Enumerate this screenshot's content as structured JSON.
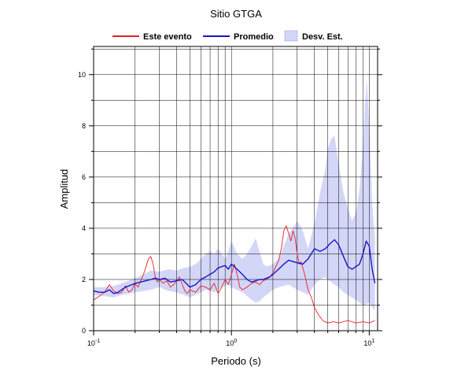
{
  "chart_data": {
    "type": "line",
    "title": "Sitio GTGA",
    "xlabel": "Periodo (s)",
    "ylabel": "Amplitud",
    "xscale": "log",
    "xlim": [
      0.1,
      11.5
    ],
    "ylim": [
      0,
      11.1
    ],
    "grid": true,
    "legend_position": "top",
    "x_tick_labels": [
      {
        "value": 0.1,
        "base": "10",
        "exp": "-1"
      },
      {
        "value": 1,
        "base": "10",
        "exp": "0"
      },
      {
        "value": 10,
        "base": "10",
        "exp": "1"
      }
    ],
    "y_ticks": [
      0,
      2,
      4,
      6,
      8,
      10
    ],
    "y_tick_labels": [
      "0",
      "2",
      "4",
      "6",
      "8",
      "10"
    ],
    "series": [
      {
        "name": "Este evento",
        "color": "#e8202a",
        "kind": "line",
        "x": [
          0.1,
          0.11,
          0.12,
          0.13,
          0.14,
          0.15,
          0.16,
          0.17,
          0.18,
          0.19,
          0.2,
          0.21,
          0.22,
          0.23,
          0.24,
          0.25,
          0.26,
          0.27,
          0.28,
          0.29,
          0.3,
          0.32,
          0.34,
          0.36,
          0.38,
          0.4,
          0.42,
          0.44,
          0.46,
          0.48,
          0.5,
          0.55,
          0.6,
          0.65,
          0.7,
          0.75,
          0.8,
          0.85,
          0.9,
          0.95,
          1.0,
          1.05,
          1.1,
          1.15,
          1.2,
          1.3,
          1.4,
          1.5,
          1.6,
          1.7,
          1.8,
          1.9,
          2.0,
          2.1,
          2.2,
          2.3,
          2.4,
          2.5,
          2.6,
          2.7,
          2.8,
          2.9,
          3.0,
          3.1,
          3.2,
          3.4,
          3.6,
          3.8,
          4.0,
          4.3,
          4.6,
          5.0,
          5.5,
          6.0,
          7.0,
          8.0,
          9.0,
          10.0,
          11.0
        ],
        "y": [
          1.2,
          1.35,
          1.5,
          1.8,
          1.55,
          1.45,
          1.5,
          1.75,
          1.5,
          1.6,
          1.85,
          1.7,
          1.95,
          2.2,
          2.5,
          2.8,
          2.9,
          2.6,
          2.1,
          1.9,
          2.0,
          1.85,
          1.95,
          1.7,
          1.8,
          1.95,
          2.1,
          1.8,
          1.55,
          1.45,
          1.6,
          1.5,
          1.75,
          1.7,
          1.6,
          1.85,
          1.45,
          1.7,
          2.0,
          1.8,
          2.2,
          2.6,
          2.2,
          1.7,
          1.6,
          1.7,
          1.85,
          1.9,
          1.8,
          1.95,
          2.0,
          2.1,
          2.25,
          2.5,
          2.75,
          3.2,
          3.9,
          4.1,
          3.8,
          3.5,
          3.9,
          3.6,
          3.0,
          2.6,
          2.7,
          2.2,
          1.6,
          1.3,
          0.9,
          0.6,
          0.4,
          0.3,
          0.35,
          0.3,
          0.4,
          0.3,
          0.35,
          0.3,
          0.4
        ]
      },
      {
        "name": "Promedio",
        "color": "#1515c8",
        "kind": "line",
        "x": [
          0.1,
          0.11,
          0.12,
          0.13,
          0.14,
          0.15,
          0.16,
          0.17,
          0.18,
          0.19,
          0.2,
          0.22,
          0.24,
          0.26,
          0.28,
          0.3,
          0.33,
          0.36,
          0.4,
          0.44,
          0.48,
          0.5,
          0.55,
          0.6,
          0.65,
          0.7,
          0.75,
          0.8,
          0.85,
          0.9,
          0.95,
          1.0,
          1.1,
          1.2,
          1.3,
          1.4,
          1.5,
          1.6,
          1.7,
          1.8,
          1.9,
          2.0,
          2.2,
          2.4,
          2.6,
          2.8,
          3.0,
          3.3,
          3.6,
          4.0,
          4.4,
          4.8,
          5.2,
          5.6,
          6.0,
          6.5,
          7.0,
          7.5,
          8.0,
          8.5,
          9.0,
          9.5,
          10.0,
          10.5,
          11.0
        ],
        "y": [
          1.55,
          1.5,
          1.5,
          1.6,
          1.45,
          1.5,
          1.6,
          1.7,
          1.75,
          1.8,
          1.85,
          1.9,
          1.95,
          2.0,
          2.05,
          2.0,
          2.05,
          1.9,
          1.95,
          2.0,
          1.8,
          1.7,
          1.8,
          2.0,
          2.1,
          2.2,
          2.3,
          2.45,
          2.5,
          2.55,
          2.4,
          2.6,
          2.4,
          2.2,
          2.0,
          1.9,
          1.95,
          2.0,
          2.0,
          2.05,
          2.1,
          2.2,
          2.4,
          2.6,
          2.75,
          2.7,
          2.65,
          2.6,
          2.8,
          3.2,
          3.1,
          3.2,
          3.4,
          3.55,
          3.35,
          2.9,
          2.5,
          2.4,
          2.5,
          2.6,
          3.0,
          3.5,
          3.3,
          2.4,
          1.85
        ]
      },
      {
        "name": "Desv. Est.",
        "color": "#d4d6f8",
        "kind": "band",
        "x": [
          0.1,
          0.12,
          0.14,
          0.16,
          0.18,
          0.2,
          0.23,
          0.26,
          0.3,
          0.35,
          0.4,
          0.45,
          0.5,
          0.55,
          0.6,
          0.65,
          0.7,
          0.75,
          0.8,
          0.85,
          0.9,
          0.95,
          1.0,
          1.1,
          1.2,
          1.3,
          1.4,
          1.5,
          1.6,
          1.7,
          1.8,
          2.0,
          2.2,
          2.4,
          2.6,
          2.8,
          3.0,
          3.3,
          3.6,
          4.0,
          4.4,
          4.8,
          5.0,
          5.3,
          5.6,
          6.0,
          6.5,
          7.0,
          7.5,
          8.0,
          8.5,
          9.0,
          9.3,
          9.6,
          10.0,
          10.5,
          11.0
        ],
        "upper": [
          1.7,
          1.7,
          1.75,
          1.85,
          1.95,
          2.05,
          2.2,
          2.35,
          2.3,
          2.4,
          2.35,
          2.45,
          2.5,
          2.6,
          2.8,
          3.0,
          3.1,
          3.0,
          3.2,
          3.0,
          2.8,
          3.1,
          3.5,
          3.0,
          2.8,
          3.0,
          3.3,
          3.6,
          3.1,
          2.6,
          2.5,
          2.6,
          2.8,
          3.3,
          3.8,
          4.0,
          4.3,
          3.9,
          3.2,
          4.2,
          5.4,
          6.3,
          7.1,
          7.5,
          7.6,
          6.5,
          5.4,
          4.8,
          4.3,
          4.6,
          5.5,
          7.2,
          8.8,
          9.8,
          8.0,
          5.0,
          3.6
        ],
        "lower": [
          1.4,
          1.35,
          1.3,
          1.4,
          1.45,
          1.5,
          1.55,
          1.6,
          1.7,
          1.55,
          1.5,
          1.4,
          1.3,
          1.4,
          1.5,
          1.6,
          1.55,
          1.5,
          1.6,
          1.7,
          1.75,
          1.8,
          1.7,
          1.6,
          1.5,
          1.35,
          1.2,
          1.1,
          1.15,
          1.3,
          1.4,
          1.6,
          1.7,
          1.75,
          1.8,
          1.7,
          1.6,
          1.5,
          1.4,
          1.8,
          2.0,
          2.1,
          2.0,
          1.9,
          1.8,
          1.7,
          1.5,
          1.4,
          1.3,
          1.2,
          1.1,
          1.0,
          1.0,
          1.05,
          1.1,
          0.9,
          0.8
        ]
      }
    ]
  }
}
